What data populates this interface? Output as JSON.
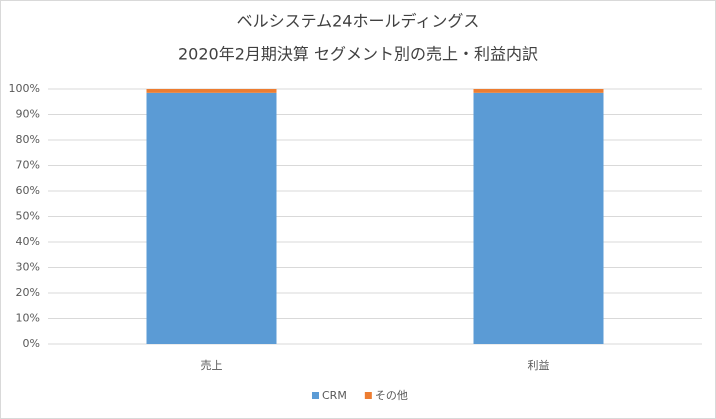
{
  "chart_data": {
    "type": "stacked-bar",
    "title": "ベルシステム24ホールディングス",
    "subtitle": "2020年2月期決算 セグメント別の売上・利益内訳",
    "categories": [
      "売上",
      "利益"
    ],
    "series": [
      {
        "name": "CRM",
        "color": "#5b9bd5",
        "values": [
          98.5,
          98.5
        ]
      },
      {
        "name": "その他",
        "color": "#ed7d31",
        "values": [
          1.5,
          1.5
        ]
      }
    ],
    "ylim": [
      0,
      100
    ],
    "yticks": [
      {
        "value": 0,
        "label": "0%"
      },
      {
        "value": 10,
        "label": "10%"
      },
      {
        "value": 20,
        "label": "20%"
      },
      {
        "value": 30,
        "label": "30%"
      },
      {
        "value": 40,
        "label": "40%"
      },
      {
        "value": 50,
        "label": "50%"
      },
      {
        "value": 60,
        "label": "60%"
      },
      {
        "value": 70,
        "label": "70%"
      },
      {
        "value": 80,
        "label": "80%"
      },
      {
        "value": 90,
        "label": "90%"
      },
      {
        "value": 100,
        "label": "100%"
      }
    ],
    "grid": true,
    "legend": "bottom"
  }
}
